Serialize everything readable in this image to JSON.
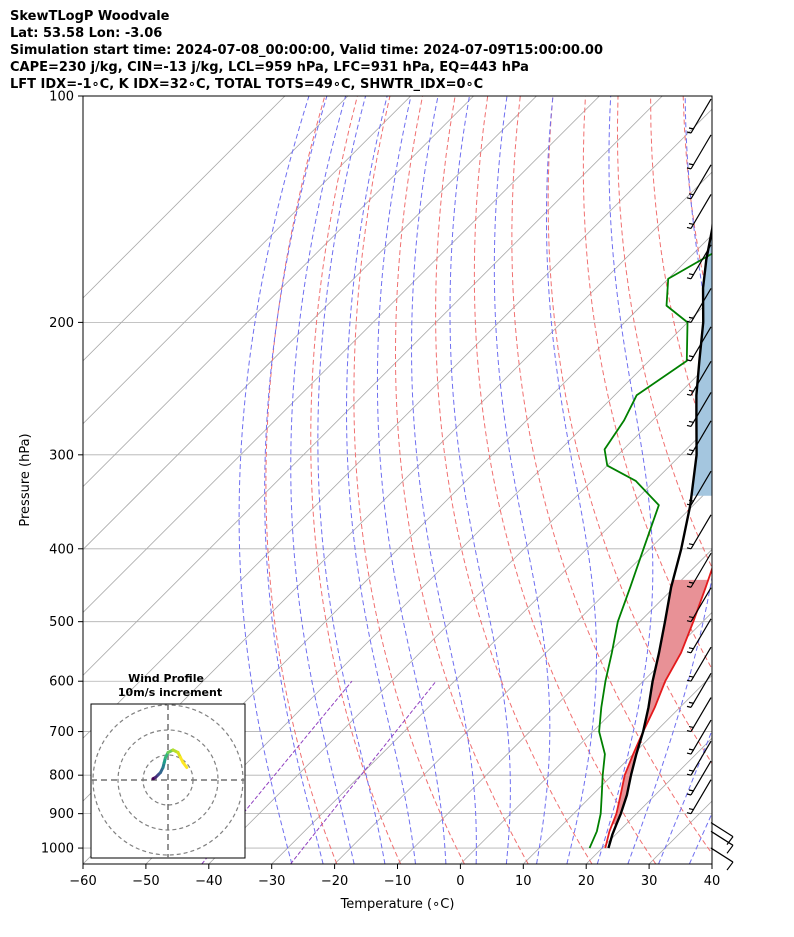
{
  "header": {
    "line1": "SkewTLogP Woodvale",
    "line2": "Lat: 53.58   Lon: -3.06",
    "line3": "Simulation start time: 2024-07-08_00:00:00, Valid time: 2024-07-09T15:00:00.00",
    "line4": "CAPE=230 j/kg, CIN=-13 j/kg, LCL=959 hPa, LFC=931 hPa, EQ=443 hPa",
    "line5": "LFT IDX=-1∘C, K IDX=32∘C, TOTAL TOTS=49∘C, SHWTR_IDX=0∘C"
  },
  "chart_data": {
    "type": "line",
    "subtype": "skew-t log-p",
    "xlabel": "Temperature (∘C)",
    "ylabel": "Pressure (hPa)",
    "xlim": [
      -60,
      40
    ],
    "ylim": [
      1050,
      100
    ],
    "y_scale": "log",
    "grid": true,
    "x_ticks": [
      "−60",
      "−50",
      "−40",
      "−30",
      "−20",
      "−10",
      "0",
      "10",
      "20",
      "30",
      "40"
    ],
    "y_ticks": [
      "100",
      "200",
      "300",
      "400",
      "500",
      "600",
      "700",
      "800",
      "900",
      "1000"
    ],
    "series": [
      {
        "role": "temperature",
        "color": "#e41a1c",
        "points": [
          [
            20.5,
            1000
          ],
          [
            18.5,
            950
          ],
          [
            16.8,
            900
          ],
          [
            14.5,
            850
          ],
          [
            12,
            800
          ],
          [
            10,
            750
          ],
          [
            8,
            700
          ],
          [
            6,
            650
          ],
          [
            3.5,
            600
          ],
          [
            1.5,
            550
          ],
          [
            -1.5,
            500
          ],
          [
            -5,
            450
          ],
          [
            -9,
            400
          ],
          [
            -14,
            350
          ],
          [
            -19.5,
            300
          ],
          [
            -26,
            250
          ],
          [
            -33.5,
            225
          ],
          [
            -38,
            200
          ],
          [
            -45,
            175
          ],
          [
            -51,
            162
          ],
          [
            -55,
            150
          ],
          [
            -58.5,
            137
          ],
          [
            -61,
            125
          ],
          [
            -63.5,
            112
          ],
          [
            -66,
            100
          ]
        ]
      },
      {
        "role": "dewpoint",
        "color": "#008000",
        "points": [
          [
            18,
            1000
          ],
          [
            16.5,
            950
          ],
          [
            14.3,
            900
          ],
          [
            11.5,
            850
          ],
          [
            8.5,
            800
          ],
          [
            5.5,
            750
          ],
          [
            1,
            700
          ],
          [
            -2.5,
            650
          ],
          [
            -6,
            600
          ],
          [
            -9.5,
            550
          ],
          [
            -13.5,
            500
          ],
          [
            -17,
            450
          ],
          [
            -21,
            400
          ],
          [
            -25.5,
            350
          ],
          [
            -33,
            325
          ],
          [
            -40,
            310
          ],
          [
            -43,
            295
          ],
          [
            -44.5,
            270
          ],
          [
            -46.5,
            250
          ],
          [
            -44,
            225
          ],
          [
            -50,
            200
          ],
          [
            -56,
            190
          ],
          [
            -60,
            175
          ],
          [
            -54,
            150
          ],
          [
            -46,
            125
          ],
          [
            -40,
            100
          ]
        ]
      },
      {
        "role": "parcel",
        "color": "#000000",
        "points": [
          [
            21,
            1000
          ],
          [
            19.5,
            960
          ],
          [
            18.5,
            930
          ],
          [
            17.5,
            900
          ],
          [
            15.5,
            850
          ],
          [
            13,
            800
          ],
          [
            10.5,
            750
          ],
          [
            8,
            700
          ],
          [
            5,
            650
          ],
          [
            1.5,
            600
          ],
          [
            -2,
            550
          ],
          [
            -6,
            500
          ],
          [
            -10.5,
            450
          ],
          [
            -15,
            400
          ],
          [
            -20.5,
            350
          ],
          [
            -27.5,
            300
          ],
          [
            -33,
            270
          ],
          [
            -37,
            250
          ],
          [
            -42,
            225
          ],
          [
            -47.5,
            200
          ],
          [
            -53,
            180
          ],
          [
            -57,
            165
          ],
          [
            -61,
            150
          ],
          [
            -66,
            135
          ],
          [
            -71,
            120
          ],
          [
            -77,
            100
          ]
        ]
      }
    ],
    "shading": [
      {
        "name": "CAPE",
        "color": "#a4c6df",
        "between": [
          "temperature",
          "parcel"
        ],
        "p_range": [
          340,
          100
        ]
      },
      {
        "name": "CAPE-low",
        "color": "#e89196",
        "between": [
          "temperature",
          "parcel"
        ],
        "p_range": [
          930,
          440
        ]
      }
    ],
    "wind_barbs_pressure": [
      1000,
      950,
      925,
      900,
      850,
      800,
      750,
      700,
      650,
      600,
      550,
      500,
      450,
      400,
      350,
      300,
      275,
      250,
      225,
      200,
      175,
      150,
      137,
      125,
      112
    ]
  },
  "hodograph": {
    "title": "Wind Profile",
    "subtitle": "10m/s increment",
    "rings": 3,
    "trace": [
      [
        -6,
        0.5
      ],
      [
        -5,
        1
      ],
      [
        -4,
        2
      ],
      [
        -3,
        3
      ],
      [
        -2,
        5
      ],
      [
        -1.5,
        7
      ],
      [
        -1,
        9
      ],
      [
        0,
        11
      ],
      [
        2,
        12
      ],
      [
        4,
        11
      ],
      [
        5,
        9
      ],
      [
        6,
        7
      ],
      [
        7.5,
        5
      ]
    ]
  }
}
